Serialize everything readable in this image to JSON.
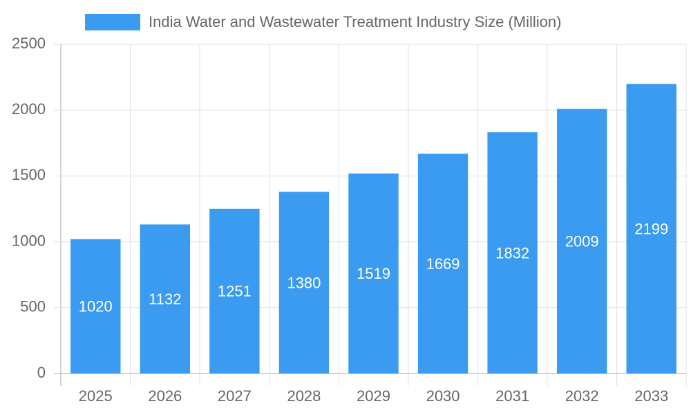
{
  "chart_data": {
    "type": "bar",
    "categories": [
      "2025",
      "2026",
      "2027",
      "2028",
      "2029",
      "2030",
      "2031",
      "2032",
      "2033"
    ],
    "series": [
      {
        "name": "India Water and Wastewater Treatment Industry Size (Million)",
        "color": "#3a9bf0",
        "values": [
          1020,
          1132,
          1251,
          1380,
          1519,
          1669,
          1832,
          2009,
          2199
        ]
      }
    ],
    "ylim": [
      0,
      2500
    ],
    "yticks": [
      0,
      500,
      1000,
      1500,
      2000,
      2500
    ],
    "grid": true,
    "legend": "top"
  }
}
